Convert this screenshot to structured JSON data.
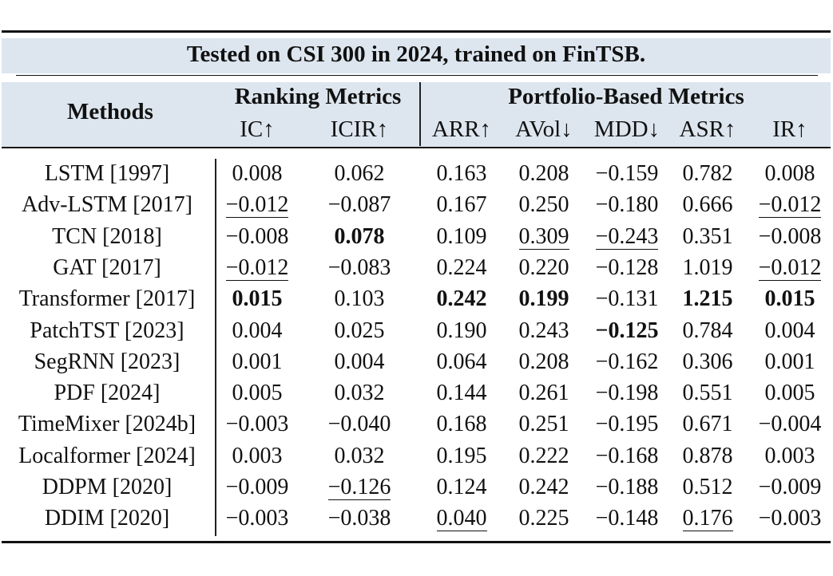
{
  "caption": "Tested on CSI 300 in 2024, trained on FinTSB.",
  "headers": {
    "methods": "Methods",
    "ranking_group": "Ranking Metrics",
    "portfolio_group": "Portfolio-Based Metrics",
    "columns": [
      "IC↑",
      "ICIR↑",
      "ARR↑",
      "AVol↓",
      "MDD↓",
      "ASR↑",
      "IR↑"
    ]
  },
  "rows": [
    {
      "method": "LSTM [1997]",
      "values": [
        "0.008",
        "0.062",
        "0.163",
        "0.208",
        "−0.159",
        "0.782",
        "0.008"
      ],
      "bold": [],
      "underline": []
    },
    {
      "method": "Adv-LSTM [2017]",
      "values": [
        "−0.012",
        "−0.087",
        "0.167",
        "0.250",
        "−0.180",
        "0.666",
        "−0.012"
      ],
      "bold": [],
      "underline": [
        0,
        6
      ]
    },
    {
      "method": "TCN [2018]",
      "values": [
        "−0.008",
        "0.078",
        "0.109",
        "0.309",
        "−0.243",
        "0.351",
        "−0.008"
      ],
      "bold": [
        1
      ],
      "underline": [
        3,
        4
      ]
    },
    {
      "method": "GAT [2017]",
      "values": [
        "−0.012",
        "−0.083",
        "0.224",
        "0.220",
        "−0.128",
        "1.019",
        "−0.012"
      ],
      "bold": [],
      "underline": [
        0,
        6
      ]
    },
    {
      "method": "Transformer [2017]",
      "values": [
        "0.015",
        "0.103",
        "0.242",
        "0.199",
        "−0.131",
        "1.215",
        "0.015"
      ],
      "bold": [
        0,
        2,
        3,
        5,
        6
      ],
      "underline": []
    },
    {
      "method": "PatchTST [2023]",
      "values": [
        "0.004",
        "0.025",
        "0.190",
        "0.243",
        "−0.125",
        "0.784",
        "0.004"
      ],
      "bold": [
        4
      ],
      "underline": []
    },
    {
      "method": "SegRNN [2023]",
      "values": [
        "0.001",
        "0.004",
        "0.064",
        "0.208",
        "−0.162",
        "0.306",
        "0.001"
      ],
      "bold": [],
      "underline": []
    },
    {
      "method": "PDF [2024]",
      "values": [
        "0.005",
        "0.032",
        "0.144",
        "0.261",
        "−0.198",
        "0.551",
        "0.005"
      ],
      "bold": [],
      "underline": []
    },
    {
      "method": "TimeMixer [2024b]",
      "values": [
        "−0.003",
        "−0.040",
        "0.168",
        "0.251",
        "−0.195",
        "0.671",
        "−0.004"
      ],
      "bold": [],
      "underline": []
    },
    {
      "method": "Localformer [2024]",
      "values": [
        "0.003",
        "0.032",
        "0.195",
        "0.222",
        "−0.168",
        "0.878",
        "0.003"
      ],
      "bold": [],
      "underline": []
    },
    {
      "method": "DDPM [2020]",
      "values": [
        "−0.009",
        "−0.126",
        "0.124",
        "0.242",
        "−0.188",
        "0.512",
        "−0.009"
      ],
      "bold": [],
      "underline": [
        1
      ]
    },
    {
      "method": "DDIM [2020]",
      "values": [
        "−0.003",
        "−0.038",
        "0.040",
        "0.225",
        "−0.148",
        "0.176",
        "−0.003"
      ],
      "bold": [],
      "underline": [
        2,
        5
      ]
    }
  ]
}
